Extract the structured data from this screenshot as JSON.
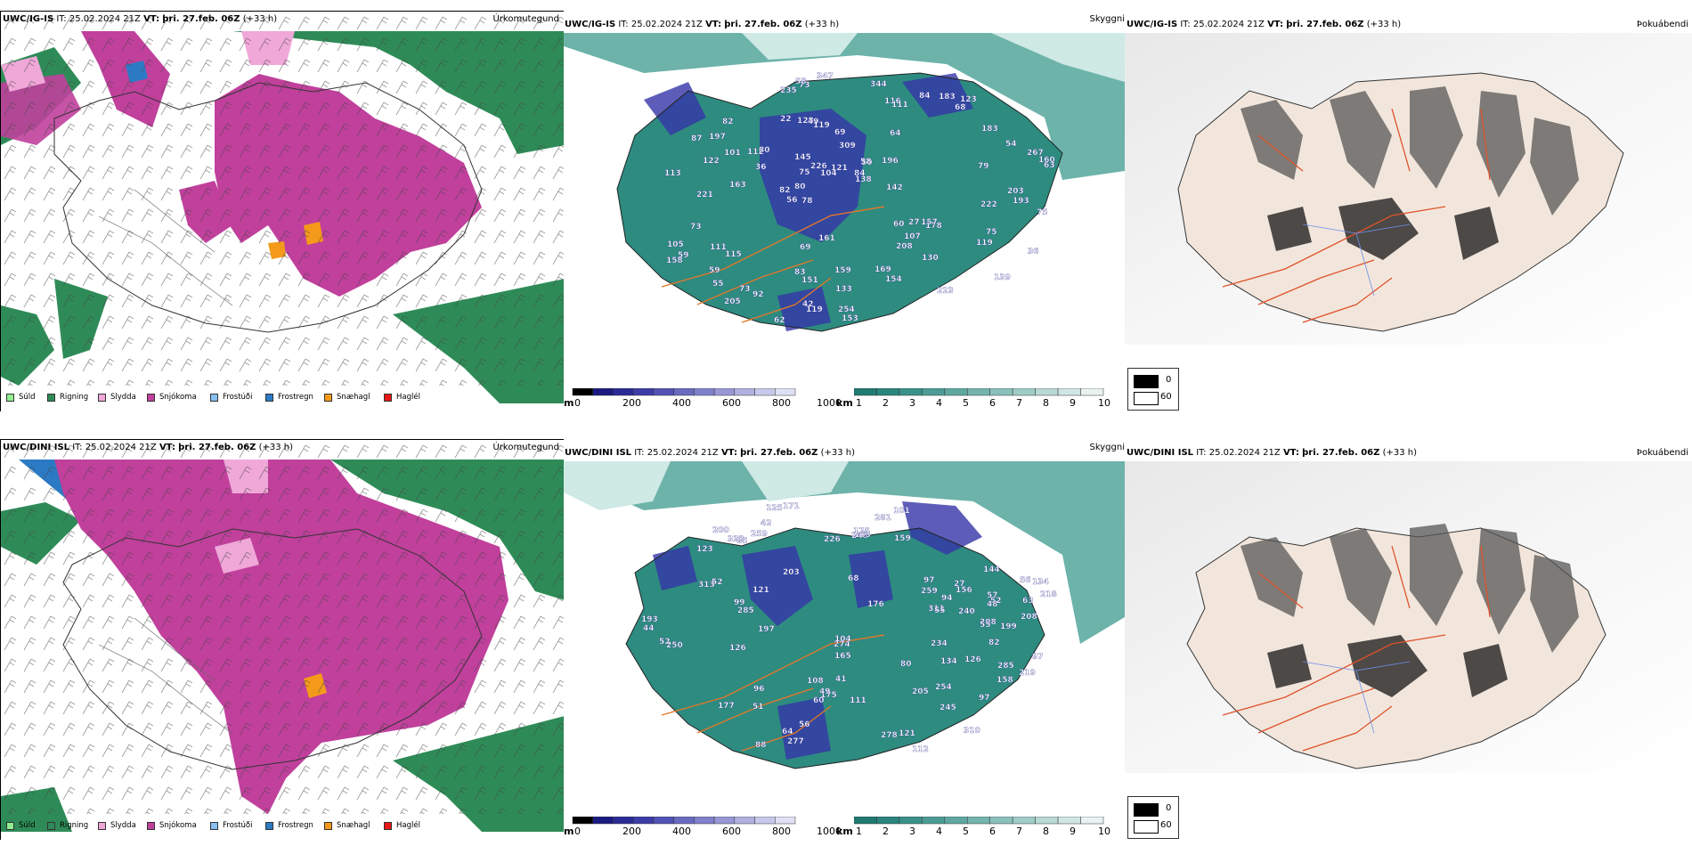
{
  "rows": [
    {
      "model": "UWC/IG-IS",
      "it_label": "IT:",
      "it_value": "25.02.2024 21Z",
      "vt_label": "VT:",
      "vt_value": "þri. 27.feb. 06Z",
      "lead": "(+33 h)",
      "precip_title": "Úrkomutegund",
      "vis_title": "Skyggni",
      "fog_title": "Þokuábendi",
      "height_labels": [
        "113",
        "56",
        "64",
        "128",
        "309",
        "59",
        "80",
        "55",
        "49",
        "50",
        "178",
        "73",
        "63",
        "60",
        "54",
        "80",
        "83",
        "75",
        "82",
        "84",
        "115",
        "139",
        "157",
        "153",
        "112",
        "122",
        "208",
        "205",
        "267",
        "84",
        "151",
        "138",
        "158",
        "183",
        "107",
        "154",
        "59",
        "159",
        "123",
        "347",
        "163",
        "197",
        "183",
        "344",
        "235",
        "226",
        "36",
        "69",
        "92",
        "27",
        "101",
        "87",
        "75",
        "145",
        "133",
        "121",
        "142",
        "75",
        "42",
        "79",
        "161",
        "223",
        "254",
        "169",
        "58",
        "193",
        "196",
        "130",
        "104",
        "119",
        "119",
        "116",
        "111",
        "221",
        "203",
        "160",
        "73",
        "111",
        "73",
        "58",
        "68",
        "36",
        "222",
        "119",
        "82",
        "78",
        "22",
        "62",
        "105",
        "69"
      ]
    },
    {
      "model": "UWC/DINI ISL",
      "it_label": "IT:",
      "it_value": "25.02.2024 21Z",
      "vt_label": "VT:",
      "vt_value": "þri. 27.feb. 06Z",
      "lead": "(+33 h)",
      "precip_title": "Úrkomutegund",
      "vis_title": "Skyggni",
      "fog_title": "Þokuábendi",
      "height_labels": [
        "97",
        "56",
        "68",
        "42",
        "57",
        "51",
        "52",
        "63",
        "208",
        "277",
        "123",
        "259",
        "175",
        "52",
        "52",
        "250",
        "278",
        "311",
        "64",
        "60",
        "281",
        "159",
        "97",
        "126",
        "245",
        "88",
        "274",
        "285",
        "310",
        "55",
        "226",
        "197",
        "126",
        "240",
        "248",
        "285",
        "219",
        "134",
        "101",
        "121",
        "156",
        "177",
        "165",
        "163",
        "218",
        "205",
        "234",
        "125",
        "200",
        "112",
        "175",
        "171",
        "254",
        "111",
        "333",
        "104",
        "27",
        "313",
        "144",
        "55",
        "96",
        "80",
        "49",
        "94",
        "208",
        "82",
        "158",
        "121",
        "97",
        "199",
        "56",
        "48",
        "44",
        "41",
        "203",
        "176",
        "99",
        "85",
        "134",
        "108",
        "193",
        "259"
      ]
    }
  ],
  "precip_legend": [
    {
      "label": "Súld",
      "color": "#90ee90"
    },
    {
      "label": "Rigning",
      "color": "#2e8b57"
    },
    {
      "label": "Slydda",
      "color": "#f0a8d8"
    },
    {
      "label": "Snjókoma",
      "color": "#c0409c"
    },
    {
      "label": "Frostúði",
      "color": "#87bff0"
    },
    {
      "label": "Frostregn",
      "color": "#2c7ac4"
    },
    {
      "label": "Snæhagl",
      "color": "#f39a1a"
    },
    {
      "label": "Haglél",
      "color": "#e81818"
    }
  ],
  "height_bar": {
    "unit": "m",
    "ticks": [
      "0",
      "200",
      "400",
      "600",
      "800",
      "1000"
    ],
    "colors": [
      "#000000",
      "#1a1a80",
      "#2b2b96",
      "#3d3da8",
      "#5252b4",
      "#6a6ac0",
      "#8080cb",
      "#9898d6",
      "#b0b0e0",
      "#c8c8ea",
      "#e0e0f4"
    ]
  },
  "visibility_bar": {
    "unit": "km",
    "ticks": [
      "1",
      "2",
      "3",
      "4",
      "5",
      "6",
      "7",
      "8",
      "9",
      "10"
    ],
    "colors": [
      "#1f7a72",
      "#2a857d",
      "#3a9189",
      "#4c9c95",
      "#5fa8a1",
      "#74b4ad",
      "#8ac0ba",
      "#a0ccc7",
      "#b8d9d4",
      "#d0e6e2",
      "#e8f3f1"
    ]
  },
  "fog_legend": [
    {
      "label": "0",
      "color": "#000000"
    },
    {
      "label": "60",
      "color": "#ffffff"
    }
  ],
  "colors": {
    "rain": "#2e8b57",
    "snow": "#c0409c",
    "sleet": "#f0a8d8",
    "freezing_rain": "#2c7ac4",
    "snow_pellets": "#f39a1a",
    "vis_sea": "#3c9a8e",
    "vis_light": "#cfe9e5",
    "low_cloud": "#3434a8",
    "roads": "#e0782a",
    "land_fog": "#f2e6dc",
    "roads_fog": "#e0522a",
    "rivers": "#6f8fe8"
  }
}
